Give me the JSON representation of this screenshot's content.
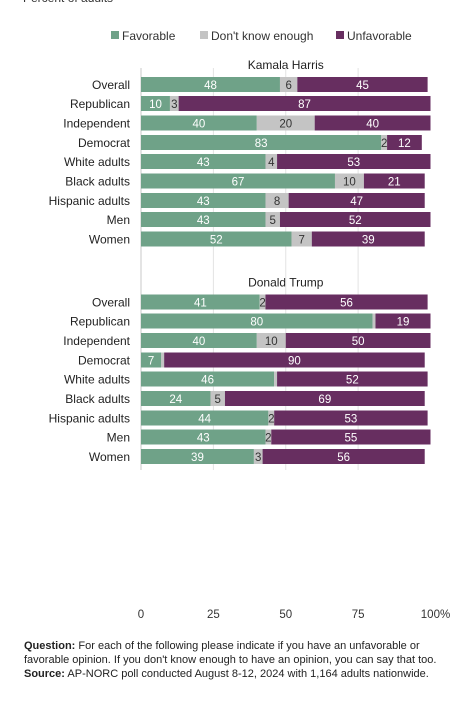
{
  "header_partial_text": "Percent of adults",
  "legend": [
    {
      "label": "Favorable",
      "color": "#6fa288"
    },
    {
      "label": "Don't know enough",
      "color": "#c4c4c4"
    },
    {
      "label": "Unfavorable",
      "color": "#672e60"
    }
  ],
  "chart_data": {
    "type": "bar",
    "orientation": "horizontal",
    "stacked": true,
    "x_ticks": [
      "0",
      "25",
      "50",
      "75",
      "100%"
    ],
    "xlim": [
      0,
      100
    ],
    "series_names": [
      "Favorable",
      "Don't know enough",
      "Unfavorable"
    ],
    "panels": [
      {
        "title": "Kamala Harris",
        "groups": [
          [
            {
              "label": "Overall",
              "values": [
                48,
                6,
                45
              ]
            }
          ],
          [
            {
              "label": "Republican",
              "values": [
                10,
                3,
                87
              ]
            },
            {
              "label": "Independent",
              "values": [
                40,
                20,
                40
              ]
            },
            {
              "label": "Democrat",
              "values": [
                83,
                2,
                12
              ]
            }
          ],
          [
            {
              "label": "White adults",
              "values": [
                43,
                4,
                53
              ]
            },
            {
              "label": "Black adults",
              "values": [
                67,
                10,
                21
              ]
            },
            {
              "label": "Hispanic adults",
              "values": [
                43,
                8,
                47
              ]
            }
          ],
          [
            {
              "label": "Men",
              "values": [
                43,
                5,
                52
              ]
            },
            {
              "label": "Women",
              "values": [
                52,
                7,
                39
              ]
            }
          ]
        ]
      },
      {
        "title": "Donald Trump",
        "groups": [
          [
            {
              "label": "Overall",
              "values": [
                41,
                2,
                56
              ]
            }
          ],
          [
            {
              "label": "Republican",
              "values": [
                80,
                1,
                19
              ]
            },
            {
              "label": "Independent",
              "values": [
                40,
                10,
                50
              ]
            },
            {
              "label": "Democrat",
              "values": [
                7,
                1,
                90
              ]
            }
          ],
          [
            {
              "label": "White adults",
              "values": [
                46,
                1,
                52
              ]
            },
            {
              "label": "Black adults",
              "values": [
                24,
                5,
                69
              ]
            },
            {
              "label": "Hispanic adults",
              "values": [
                44,
                2,
                53
              ]
            }
          ],
          [
            {
              "label": "Men",
              "values": [
                43,
                2,
                55
              ]
            },
            {
              "label": "Women",
              "values": [
                39,
                3,
                56
              ]
            }
          ]
        ]
      }
    ]
  },
  "footnote": {
    "question_label": "Question:",
    "question_text": " For each of the following please indicate if you have an unfavorable or favorable opinion. If you don't know enough to have an opinion, you can say that too.",
    "source_label": "Source:",
    "source_text": " AP-NORC poll conducted August 8-12, 2024 with 1,164 adults nationwide."
  }
}
